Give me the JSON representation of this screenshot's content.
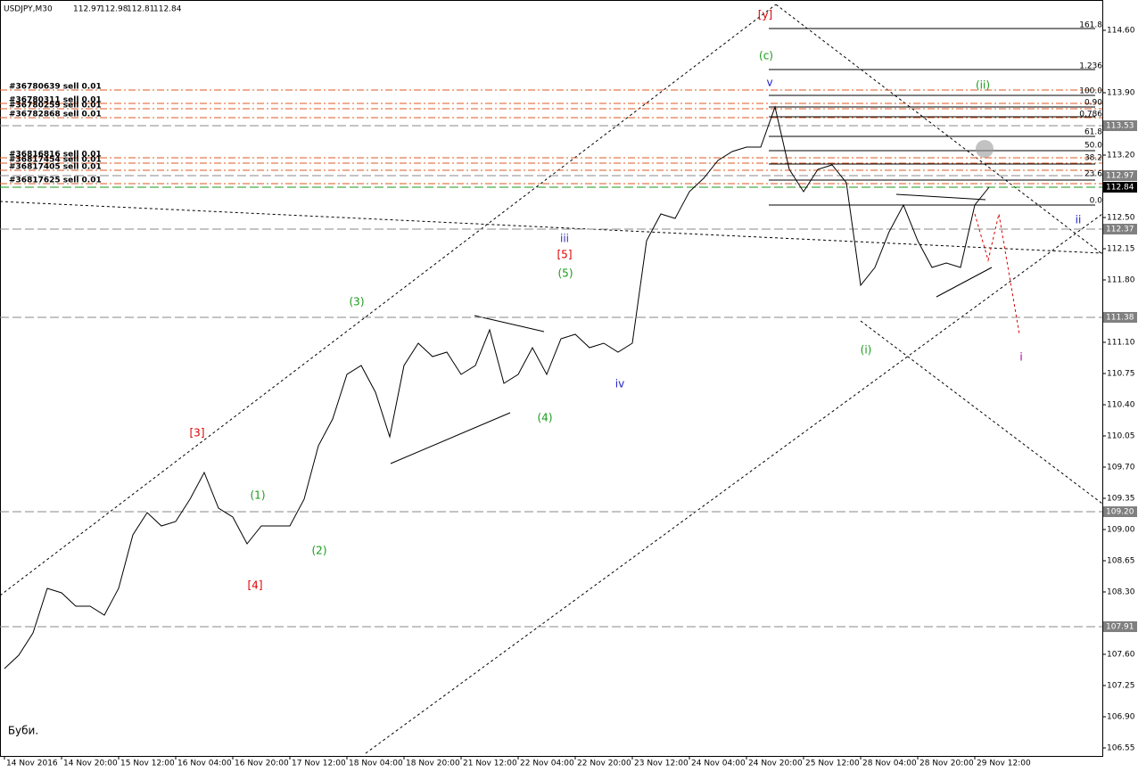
{
  "header": {
    "symbol": "USDJPY,M30",
    "quote": [
      112.97,
      112.98,
      112.81,
      112.84
    ]
  },
  "chart_data": {
    "type": "line",
    "categories": [
      "14 Nov 2016",
      null,
      null,
      null,
      "14 Nov 20:00",
      null,
      null,
      null,
      "15 Nov 12:00",
      null,
      null,
      null,
      "16 Nov 04:00",
      null,
      null,
      null,
      "16 Nov 20:00",
      null,
      null,
      null,
      "17 Nov 12:00",
      null,
      null,
      null,
      "18 Nov 04:00",
      null,
      null,
      null,
      "18 Nov 20:00",
      null,
      null,
      null,
      "21 Nov 12:00",
      null,
      null,
      null,
      "22 Nov 04:00",
      null,
      null,
      null,
      "22 Nov 20:00",
      null,
      null,
      null,
      "23 Nov 12:00",
      null,
      null,
      null,
      "24 Nov 04:00",
      null,
      null,
      null,
      "24 Nov 20:00",
      null,
      null,
      null,
      "25 Nov 12:00",
      null,
      null,
      null,
      "28 Nov 04:00",
      null,
      null,
      null,
      "28 Nov 20:00",
      null,
      null,
      null,
      "29 Nov 12:00",
      null
    ],
    "series": [
      {
        "name": "USDJPY",
        "color": "#000000",
        "values": [
          107.44,
          107.59,
          107.84,
          108.34,
          108.29,
          108.14,
          108.14,
          108.04,
          108.34,
          108.94,
          109.19,
          109.04,
          109.09,
          109.34,
          109.64,
          109.24,
          109.14,
          108.84,
          109.04,
          109.04,
          109.04,
          109.34,
          109.94,
          110.24,
          110.74,
          110.84,
          110.54,
          110.04,
          110.84,
          111.09,
          110.94,
          110.99,
          110.74,
          110.84,
          111.24,
          110.64,
          110.74,
          111.04,
          110.74,
          111.14,
          111.19,
          111.04,
          111.09,
          110.99,
          111.09,
          112.24,
          112.54,
          112.49,
          112.79,
          112.94,
          113.14,
          113.24,
          113.29,
          113.29,
          113.74,
          113.04,
          112.79,
          113.04,
          113.09,
          112.89,
          111.74,
          111.94,
          112.34,
          112.64,
          112.24,
          111.94,
          111.99,
          111.94,
          112.64,
          112.84
        ]
      }
    ],
    "ylim": [
      106.46,
      114.92
    ],
    "yticks": [
      {
        "value": 114.6,
        "label": "114.60"
      },
      {
        "value": 113.9,
        "label": "113.90"
      },
      {
        "value": 113.2,
        "label": "113.20"
      },
      {
        "value": 112.5,
        "label": "112.50"
      },
      112.15,
      {
        "value": 111.8,
        "label": "111.80"
      },
      {
        "value": 111.1,
        "label": "111.10"
      },
      110.75,
      {
        "value": 110.4,
        "label": "110.40"
      },
      110.05,
      {
        "value": 109.7,
        "label": "109.70"
      },
      109.35,
      {
        "value": 109.0,
        "label": "109.00"
      },
      108.65,
      {
        "value": 108.3,
        "label": "108.30"
      },
      {
        "value": 107.6,
        "label": "107.60"
      },
      107.25,
      {
        "value": 106.9,
        "label": "106.90"
      },
      106.55
    ],
    "levels": [
      {
        "value": 113.53,
        "color": "#808080"
      },
      {
        "value": 112.97,
        "color": "#808080"
      },
      {
        "value": 112.84,
        "color": "#000000"
      },
      {
        "value": 112.37,
        "color": "#808080"
      },
      {
        "value": 111.38,
        "color": "#808080"
      },
      {
        "value": {
          "value": 109.2,
          "label": "109.20"
        },
        "color": "#808080"
      },
      {
        "value": 107.91,
        "color": "#808080"
      }
    ],
    "orders": [
      {
        "label": "#36780639 sell 0.01",
        "value": 113.93
      },
      {
        "label": "#36780311 sell 0.01",
        "value": 113.78
      },
      {
        "label": "#36780259 sell 0.01",
        "value": 113.72
      },
      {
        "label": "#36782868 sell 0.01",
        "value": 113.62
      },
      {
        "label": "#36816816 sell 0.01",
        "value": 113.17
      },
      {
        "label": "#36817454 sell 0.01",
        "value": 113.11
      },
      {
        "label": "#36817405 sell 0.01",
        "value": 113.03
      },
      {
        "label": "#36817625 sell 0.01",
        "value": 112.88
      }
    ],
    "fib_labels": [
      "161.8",
      "1.236",
      "100.0",
      "0.90",
      "0.786",
      "61.8",
      "50.0",
      "38.2",
      "23.6",
      "0.0"
    ],
    "wave_labels": [
      {
        "text": "[y]",
        "color": "#e00000"
      },
      {
        "text": "(c)",
        "color": "#1a9a1a"
      },
      {
        "text": "v",
        "color": "#2020cc"
      },
      {
        "text": "(ii)",
        "color": "#1a9a1a"
      },
      {
        "text": "iii",
        "color": "#3030b0"
      },
      {
        "text": "[5]",
        "color": "#e00000"
      },
      {
        "text": "(5)",
        "color": "#1a9a1a"
      },
      {
        "text": "(3)",
        "color": "#1a9a1a"
      },
      {
        "text": "iv",
        "color": "#2020cc"
      },
      {
        "text": "(4)",
        "color": "#1a9a1a"
      },
      {
        "text": "[3]",
        "color": "#e00000"
      },
      {
        "text": "(1)",
        "color": "#1a9a1a"
      },
      {
        "text": "(2)",
        "color": "#1a9a1a"
      },
      {
        "text": "[4]",
        "color": "#e00000"
      },
      {
        "text": "(i)",
        "color": "#1a9a1a"
      },
      {
        "text": "ii",
        "color": "#2020cc"
      },
      {
        "text": "i",
        "color": "#a000a0"
      },
      {
        "text": "Буби.",
        "color": "#000000"
      }
    ]
  }
}
